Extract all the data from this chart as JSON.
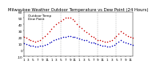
{
  "title": "Milwaukee Weather Outdoor Temperature vs Dew Point (24 Hours)",
  "background_color": "#ffffff",
  "grid_color": "#888888",
  "ylim": [
    -10,
    60
  ],
  "xlim": [
    0,
    47
  ],
  "yticks": [
    -10,
    0,
    10,
    20,
    30,
    40,
    50,
    60
  ],
  "ytick_labels": [
    "-10",
    "0",
    "10",
    "20",
    "30",
    "40",
    "50",
    "60"
  ],
  "xtick_positions": [
    0,
    2,
    4,
    6,
    8,
    10,
    12,
    14,
    16,
    18,
    20,
    22,
    24,
    26,
    28,
    30,
    32,
    34,
    36,
    38,
    40,
    42,
    44,
    46
  ],
  "xtick_labels": [
    "1",
    "3",
    "5",
    "7",
    "9",
    "11",
    "1",
    "3",
    "5",
    "7",
    "9",
    "11",
    "1",
    "3",
    "5",
    "7",
    "9",
    "11",
    "1",
    "3",
    "5",
    "7",
    "9",
    "11"
  ],
  "vgrid_positions": [
    8,
    16,
    24,
    32,
    40
  ],
  "temp_x": [
    0,
    1,
    2,
    3,
    4,
    5,
    6,
    7,
    8,
    9,
    10,
    11,
    12,
    13,
    14,
    15,
    16,
    17,
    18,
    19,
    20,
    21,
    22,
    23,
    24,
    25,
    26,
    27,
    28,
    29,
    30,
    31,
    32,
    33,
    34,
    35,
    36,
    37,
    38,
    39,
    40,
    41,
    42,
    43,
    44,
    45,
    46,
    47
  ],
  "temp_y": [
    20,
    19,
    17,
    16,
    14,
    13,
    14,
    16,
    19,
    22,
    25,
    29,
    33,
    37,
    40,
    43,
    46,
    48,
    50,
    51,
    50,
    48,
    45,
    41,
    37,
    34,
    31,
    28,
    25,
    22,
    20,
    18,
    16,
    15,
    14,
    13,
    13,
    14,
    16,
    19,
    22,
    26,
    29,
    27,
    24,
    22,
    20,
    19
  ],
  "dew_x": [
    0,
    1,
    2,
    3,
    4,
    5,
    6,
    7,
    8,
    9,
    10,
    11,
    12,
    13,
    14,
    15,
    16,
    17,
    18,
    19,
    20,
    21,
    22,
    23,
    24,
    25,
    26,
    27,
    28,
    29,
    30,
    31,
    32,
    33,
    34,
    35,
    36,
    37,
    38,
    39,
    40,
    41,
    42,
    43,
    44,
    45,
    46,
    47
  ],
  "dew_y": [
    10,
    9,
    8,
    7,
    6,
    5,
    5,
    6,
    7,
    8,
    9,
    11,
    13,
    15,
    17,
    18,
    19,
    20,
    21,
    22,
    22,
    21,
    20,
    19,
    18,
    17,
    16,
    15,
    13,
    12,
    11,
    10,
    9,
    8,
    7,
    6,
    5,
    5,
    6,
    8,
    10,
    13,
    15,
    13,
    11,
    10,
    9,
    8
  ],
  "temp_color": "#cc0000",
  "dew_color": "#0000bb",
  "dot_size": 1.2,
  "title_fontsize": 3.8,
  "tick_fontsize": 3.0,
  "legend_fontsize": 3.0,
  "legend_labels": [
    "Outdoor Temp",
    "Dew Point"
  ],
  "legend_colors": [
    "#cc0000",
    "#0000bb"
  ]
}
